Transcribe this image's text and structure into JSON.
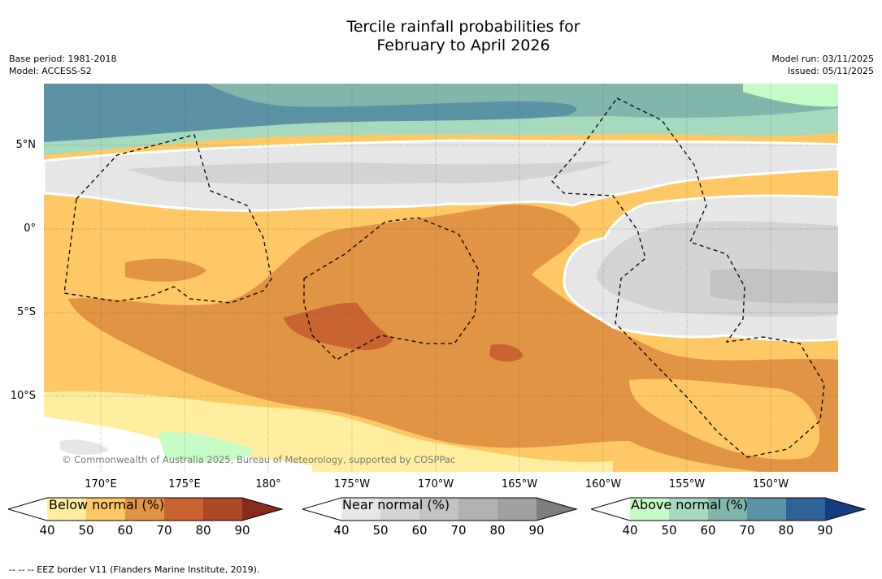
{
  "title_line1": "Tercile rainfall probabilities for",
  "title_line2": "February to April 2026",
  "base_period": "Base period: 1981-2018",
  "model": "Model: ACCESS-S2",
  "model_run": "Model run: 03/11/2025",
  "issued": "Issued: 05/11/2025",
  "lat_labels": [
    "5°N",
    "0°",
    "5°S",
    "10°S"
  ],
  "lon_labels": [
    "170°E",
    "175°E",
    "180°",
    "175°W",
    "170°W",
    "165°W",
    "160°W",
    "155°W",
    "150°W"
  ],
  "copyright": "© Commonwealth of Australia 2025, Bureau of Meteorology, supported by COSPPac",
  "colorbars": [
    {
      "label": "Below normal (%)",
      "ticks": [
        "40",
        "50",
        "60",
        "70",
        "80",
        "90"
      ],
      "colors": [
        "#ffffff",
        "#ffeea0",
        "#fec965",
        "#e19443",
        "#c96330",
        "#ac4a26",
        "#8a2a1b"
      ]
    },
    {
      "label": "Near normal (%)",
      "ticks": [
        "40",
        "50",
        "60",
        "70",
        "80",
        "90"
      ],
      "colors": [
        "#ffffff",
        "#e6e6e6",
        "#d4d4d4",
        "#c3c3c3",
        "#b2b2b2",
        "#a0a0a0",
        "#7e7e7e"
      ]
    },
    {
      "label": "Above normal (%)",
      "ticks": [
        "40",
        "50",
        "60",
        "70",
        "80",
        "90"
      ],
      "colors": [
        "#ffffff",
        "#c6fbc6",
        "#a6d9bd",
        "#82b6ad",
        "#5b92a5",
        "#2f6295",
        "#143e80"
      ]
    }
  ],
  "eez_note": "--  --  -- EEZ border V11 (Flanders Marine Institute, 2019)."
}
